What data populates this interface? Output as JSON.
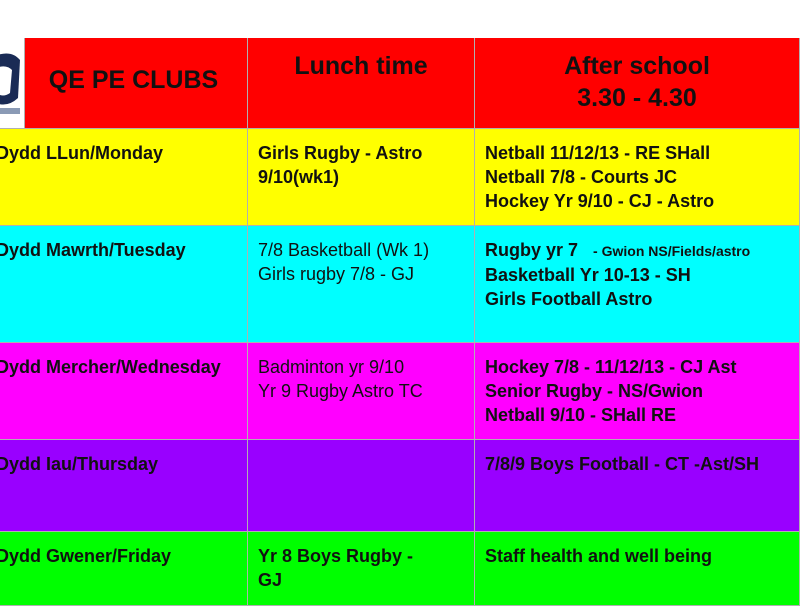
{
  "header": {
    "title": "QE PE CLUBS",
    "lunch": "Lunch time",
    "after_line1": "After school",
    "after_line2": "3.30 - 4.30",
    "bg": "#ff0000"
  },
  "rows": [
    {
      "day": "Dydd LLun/Monday",
      "bg": "#ffff00",
      "lunch": [
        "Girls Rugby - Astro",
        "9/10(wk1)"
      ],
      "lunch_bold": true,
      "after": [
        "Netball 11/12/13 - RE  SHall",
        "Netball 7/8 - Courts JC",
        "Hockey Yr 9/10 - CJ - Astro"
      ]
    },
    {
      "day": "Dydd Mawrth/Tuesday",
      "bg": "#00ffff",
      "lunch": [
        "7/8 Basketball (Wk 1)",
        "Girls rugby 7/8 - GJ"
      ],
      "lunch_bold": false,
      "after_first_a": "Rugby yr 7",
      "after_first_b": "- Gwion NS/Fields/astro",
      "after": [
        "Basketball Yr 10-13 - SH",
        "Girls Football Astro"
      ]
    },
    {
      "day": "Dydd Mercher/Wednesday",
      "bg": "#ff00ff",
      "lunch": [
        "Badminton yr 9/10",
        "Yr 9 Rugby Astro TC"
      ],
      "lunch_bold": false,
      "after": [
        "Hockey 7/8  - 11/12/13 - CJ Ast",
        "Senior Rugby - NS/Gwion",
        "Netball 9/10 - SHall RE"
      ]
    },
    {
      "day": "Dydd Iau/Thursday",
      "bg": "#9900ff",
      "lunch": [],
      "lunch_bold": false,
      "after": [
        "7/8/9 Boys Football - CT -Ast/SH"
      ]
    },
    {
      "day": "Dydd Gwener/Friday",
      "bg": "#00ff00",
      "lunch": [
        "Yr 8 Boys Rugby -",
        "GJ"
      ],
      "lunch_bold": true,
      "after": [
        "Staff health and well being"
      ]
    }
  ]
}
